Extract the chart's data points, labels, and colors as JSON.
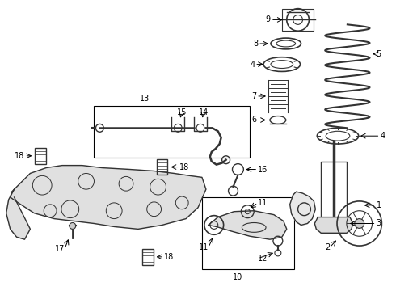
{
  "background_color": "#ffffff",
  "line_color": "#333333",
  "label_fontsize": 7.0,
  "fig_w": 4.9,
  "fig_h": 3.6,
  "dpi": 100
}
